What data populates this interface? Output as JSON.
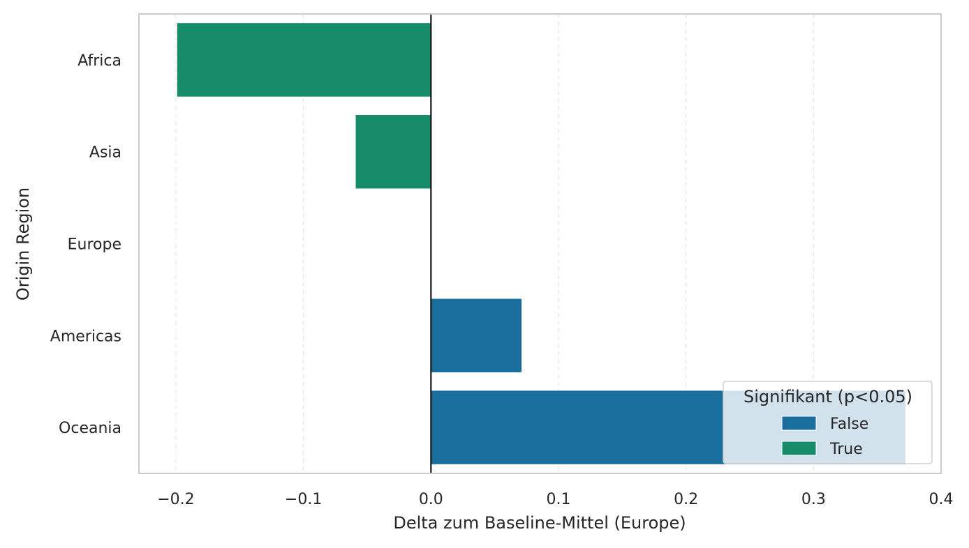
{
  "chart_data": {
    "type": "bar",
    "orientation": "horizontal",
    "categories": [
      "Africa",
      "Asia",
      "Europe",
      "Americas",
      "Oceania"
    ],
    "values": [
      -0.199,
      -0.059,
      0.0,
      0.071,
      0.372
    ],
    "significant": [
      true,
      true,
      false,
      false,
      false
    ],
    "xlabel": "Delta zum Baseline-Mittel (Europe)",
    "ylabel": "Origin Region",
    "xlim": [
      -0.229,
      0.4
    ],
    "xticks": [
      -0.2,
      -0.1,
      0.0,
      0.1,
      0.2,
      0.3,
      0.4
    ],
    "xtick_labels": [
      "−0.2",
      "−0.1",
      "0.0",
      "0.1",
      "0.2",
      "0.3",
      "0.4"
    ],
    "grid": "x, dashed",
    "reference_line": 0.0,
    "legend": {
      "title": "Signifikant (p<0.05)",
      "placement": "bottom-right",
      "entries": [
        {
          "label": "False",
          "color": "#1a6e9e"
        },
        {
          "label": "True",
          "color": "#178c6b"
        }
      ]
    },
    "colors": {
      "False": "#1a6e9e",
      "True": "#178c6b"
    }
  }
}
